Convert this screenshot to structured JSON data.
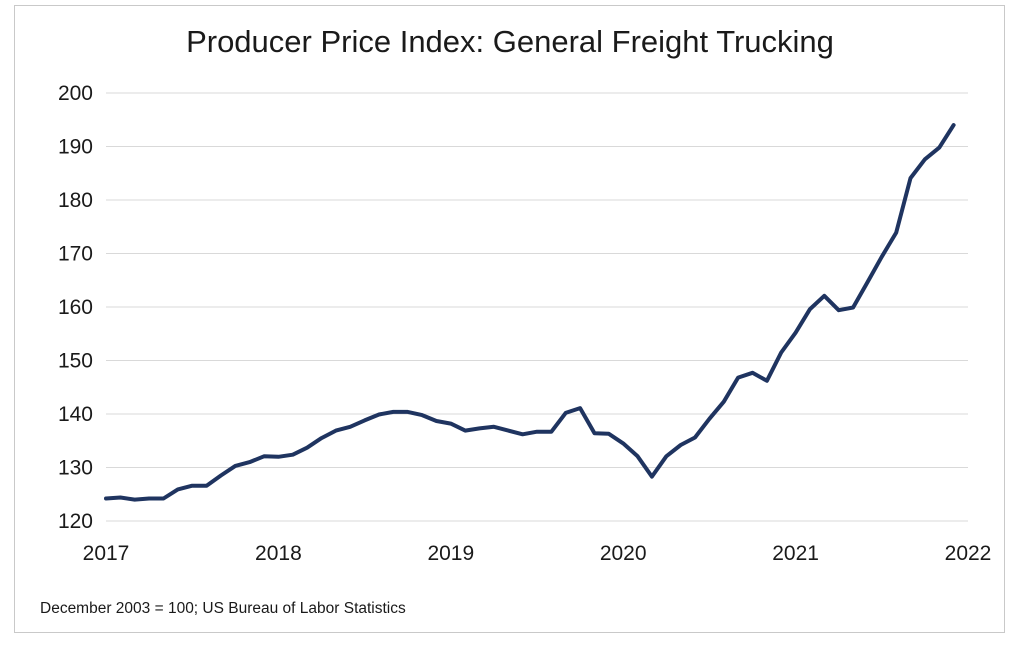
{
  "chart_data": {
    "type": "line",
    "title": "Producer Price Index: General Freight Trucking",
    "xlabel": "",
    "ylabel": "",
    "note": "December 2003 = 100; US Bureau of Labor Statistics",
    "xlim": [
      2017,
      2022
    ],
    "ylim": [
      120,
      200
    ],
    "x_ticks": [
      "2017",
      "2018",
      "2019",
      "2020",
      "2021",
      "2022"
    ],
    "y_ticks": [
      "120",
      "130",
      "140",
      "150",
      "160",
      "170",
      "180",
      "190",
      "200"
    ],
    "grid": "horizontal",
    "legend": "none",
    "line_color": "#1f3460",
    "series": [
      {
        "x": [
          "2017-01",
          "2017-02",
          "2017-03",
          "2017-04",
          "2017-05",
          "2017-06",
          "2017-07",
          "2017-08",
          "2017-09",
          "2017-10",
          "2017-11",
          "2017-12",
          "2018-01",
          "2018-02",
          "2018-03",
          "2018-04",
          "2018-05",
          "2018-06",
          "2018-07",
          "2018-08",
          "2018-09",
          "2018-10",
          "2018-11",
          "2018-12",
          "2019-01",
          "2019-02",
          "2019-03",
          "2019-04",
          "2019-05",
          "2019-06",
          "2019-07",
          "2019-08",
          "2019-09",
          "2019-10",
          "2019-11",
          "2019-12",
          "2020-01",
          "2020-02",
          "2020-03",
          "2020-04",
          "2020-05",
          "2020-06",
          "2020-07",
          "2020-08",
          "2020-09",
          "2020-10",
          "2020-11",
          "2020-12",
          "2021-01",
          "2021-02",
          "2021-03",
          "2021-04",
          "2021-05",
          "2021-06",
          "2021-07",
          "2021-08",
          "2021-09",
          "2021-10",
          "2021-11",
          "2021-12"
        ],
        "values": [
          124.2,
          124.4,
          124.0,
          124.2,
          124.2,
          125.9,
          126.6,
          126.6,
          128.5,
          130.3,
          131.0,
          132.1,
          132.0,
          132.4,
          133.7,
          135.5,
          136.9,
          137.6,
          138.8,
          139.9,
          140.4,
          140.4,
          139.8,
          138.7,
          138.2,
          136.9,
          137.3,
          137.6,
          136.9,
          136.2,
          136.7,
          136.7,
          140.2,
          141.1,
          136.4,
          136.3,
          134.5,
          132.1,
          128.3,
          132.1,
          134.2,
          135.6,
          139.1,
          142.3,
          146.8,
          147.7,
          146.2,
          151.5,
          155.2,
          159.6,
          162.1,
          159.4,
          159.9,
          164.6,
          169.4,
          173.9,
          184.1,
          187.6,
          189.8,
          194.0
        ]
      }
    ]
  }
}
